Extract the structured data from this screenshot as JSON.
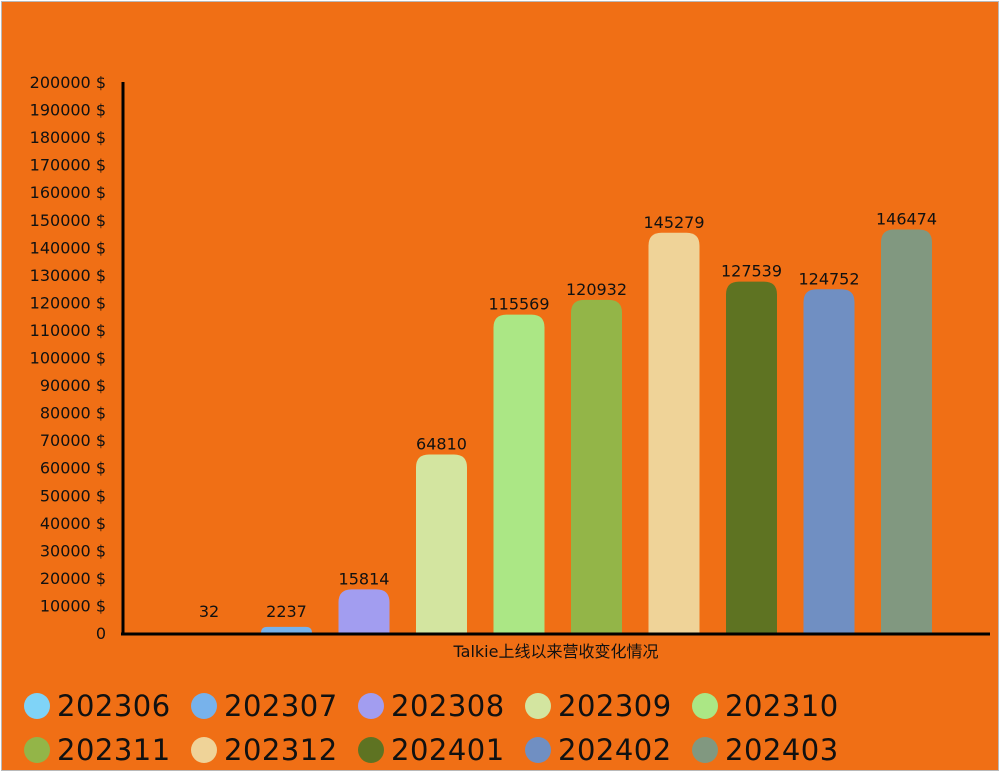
{
  "chart_data": {
    "type": "bar",
    "title": "",
    "xlabel": "Talkie上线以来营收变化情况",
    "ylabel": "",
    "y_unit": "$",
    "ylim": [
      0,
      200000
    ],
    "y_tick_step": 10000,
    "y_ticks": [
      "0",
      "10000 $",
      "20000 $",
      "30000 $",
      "40000 $",
      "50000 $",
      "60000 $",
      "70000 $",
      "80000 $",
      "90000 $",
      "100000 $",
      "110000 $",
      "120000 $",
      "130000 $",
      "140000 $",
      "150000 $",
      "160000 $",
      "170000 $",
      "180000 $",
      "190000 $",
      "200000 $"
    ],
    "grid": false,
    "legend_position": "bottom",
    "categories": [
      "202306",
      "202307",
      "202308",
      "202309",
      "202310",
      "202311",
      "202312",
      "202401",
      "202402",
      "202403"
    ],
    "values": [
      32,
      2237,
      15814,
      64810,
      115569,
      120932,
      145279,
      127539,
      124752,
      146474
    ],
    "data_labels": [
      "32",
      "2237",
      "15814",
      "64810",
      "115569",
      "120932",
      "145279",
      "127539",
      "124752",
      "146474"
    ],
    "colors": [
      "#7fd3f7",
      "#77b2eb",
      "#a29df0",
      "#d3e5a0",
      "#abe785",
      "#93b548",
      "#efd398",
      "#5e7322",
      "#708fc2",
      "#819880"
    ],
    "background_color": "#f06f15"
  }
}
